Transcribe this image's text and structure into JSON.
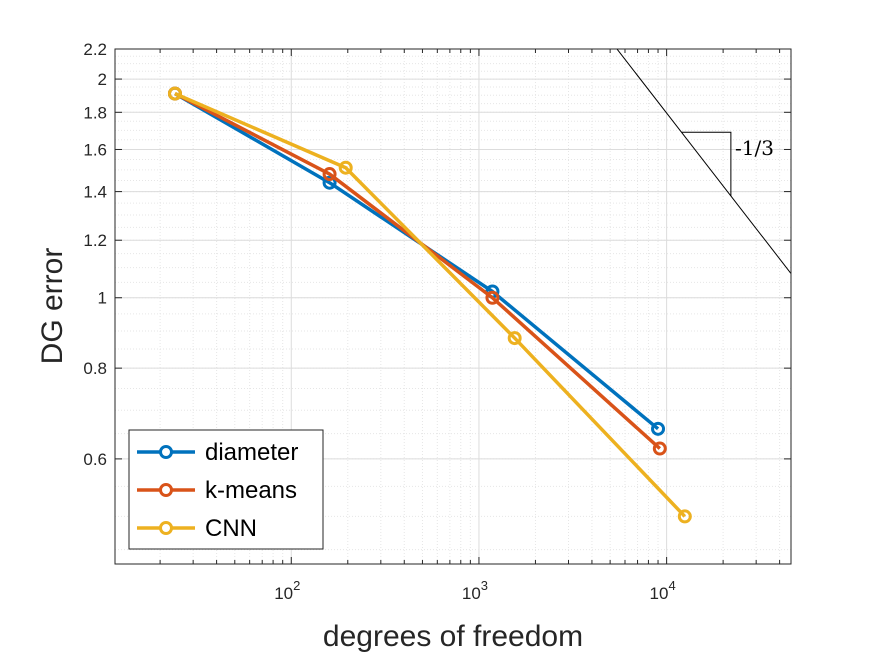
{
  "chart_data": {
    "type": "line",
    "xscale": "log",
    "yscale": "log",
    "xlabel": "degrees of freedom",
    "ylabel": "DG error",
    "xlim": [
      11.5,
      46000
    ],
    "ylim": [
      0.43,
      2.2
    ],
    "grid": true,
    "minor_grid": true,
    "legend_position": "bottom-left",
    "x_ticks": [
      {
        "value": 100,
        "base": "10",
        "exp": "2"
      },
      {
        "value": 1000,
        "base": "10",
        "exp": "3"
      },
      {
        "value": 10000,
        "base": "10",
        "exp": "4"
      }
    ],
    "y_ticks": [
      {
        "value": 0.6,
        "label": "0.6"
      },
      {
        "value": 0.8,
        "label": "0.8"
      },
      {
        "value": 1.0,
        "label": "1"
      },
      {
        "value": 1.2,
        "label": "1.2"
      },
      {
        "value": 1.4,
        "label": "1.4"
      },
      {
        "value": 1.6,
        "label": "1.6"
      },
      {
        "value": 1.8,
        "label": "1.8"
      },
      {
        "value": 2.0,
        "label": "2"
      },
      {
        "value": 2.2,
        "label": "2.2"
      }
    ],
    "series": [
      {
        "name": "diameter",
        "color": "#0072BD",
        "x": [
          24,
          160,
          1180,
          9000
        ],
        "y": [
          1.91,
          1.44,
          1.02,
          0.66
        ]
      },
      {
        "name": "k-means",
        "color": "#D95319",
        "x": [
          24,
          160,
          1180,
          9200
        ],
        "y": [
          1.91,
          1.48,
          1.0,
          0.62
        ]
      },
      {
        "name": "CNN",
        "color": "#EDB120",
        "x": [
          24,
          195,
          1550,
          12500
        ],
        "y": [
          1.91,
          1.51,
          0.88,
          0.5
        ]
      }
    ],
    "reference_line": {
      "slope": -0.3333,
      "through": [
        4350,
        2.37
      ],
      "label": "-1/3",
      "color": "#000000"
    },
    "slope_triangle": {
      "x_start": 12000,
      "x_end": 22000
    }
  }
}
